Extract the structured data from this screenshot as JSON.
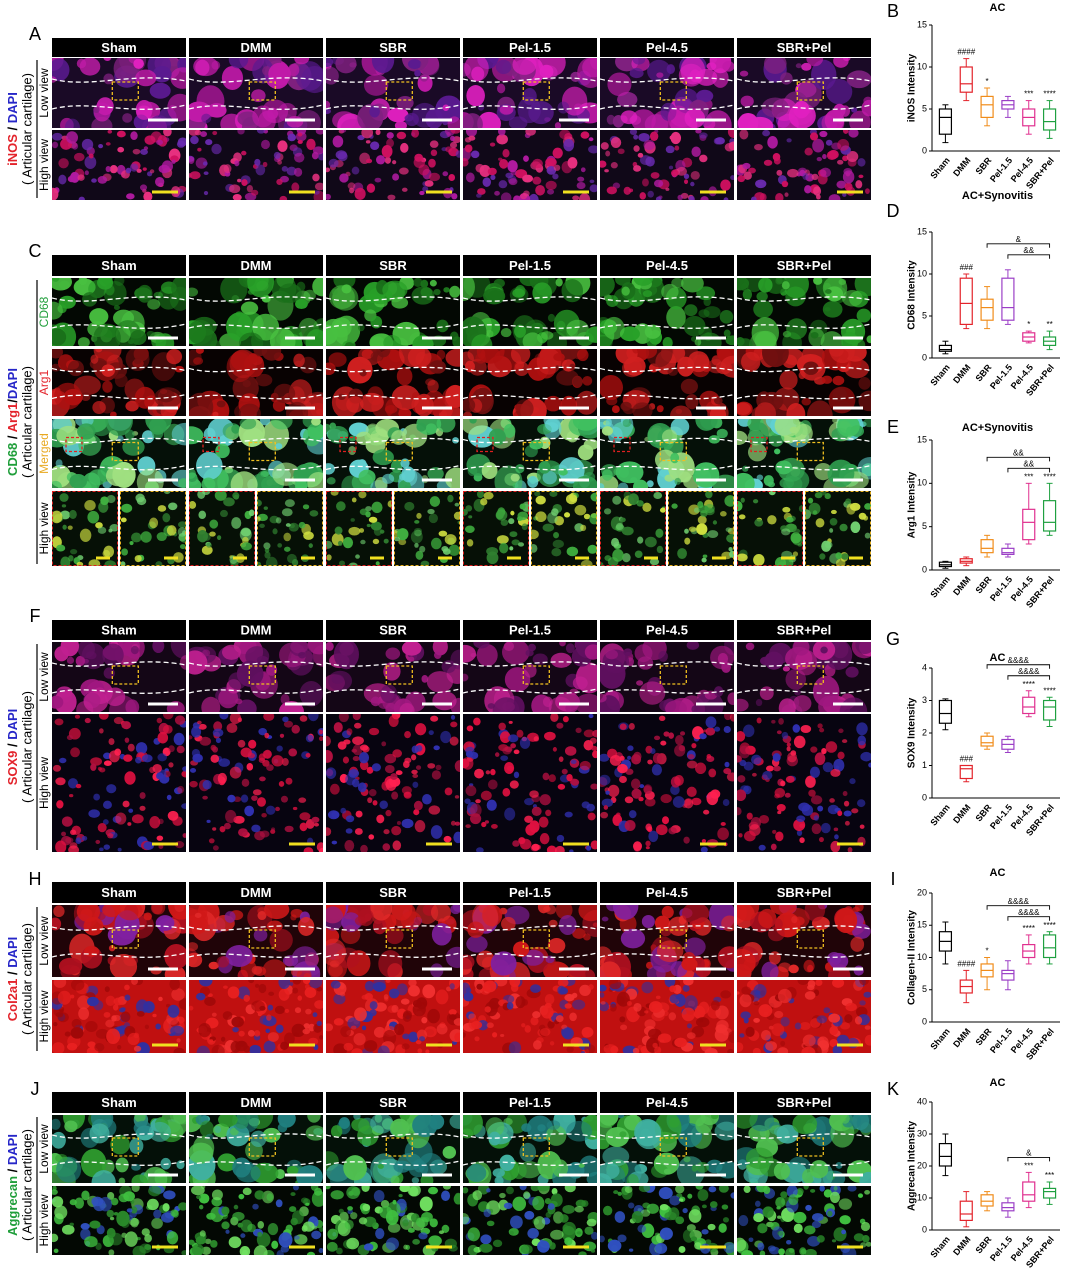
{
  "groups": [
    "Sham",
    "DMM",
    "SBR",
    "Pel-1.5",
    "Pel-4.5",
    "SBR+Pel"
  ],
  "panels": [
    {
      "letter": "A",
      "stain": [
        {
          "text": "iNOS",
          "color": "#e3232b"
        },
        {
          "text": " / ",
          "color": "#000000"
        },
        {
          "text": "DAPI",
          "color": "#2626c8"
        }
      ],
      "region": "( Articular cartilage)",
      "rows": [
        {
          "label": "Low view",
          "color": "#000000"
        },
        {
          "label": "High view",
          "color": "#000000"
        }
      ]
    },
    {
      "letter": "C",
      "stain": [
        {
          "text": "CD68",
          "color": "#1f9e3a"
        },
        {
          "text": " / ",
          "color": "#000000"
        },
        {
          "text": "Arg1",
          "color": "#e3232b"
        },
        {
          "text": "/",
          "color": "#000000"
        },
        {
          "text": "DAPI",
          "color": "#2626c8"
        }
      ],
      "region": "( Articular cartilage)",
      "rows": [
        {
          "label": "CD68",
          "color": "#1f9e3a"
        },
        {
          "label": "Arg1",
          "color": "#e3232b"
        },
        {
          "label": "Merged",
          "color": "#e8a820"
        },
        {
          "label": "High view",
          "color": "#000000"
        }
      ]
    },
    {
      "letter": "F",
      "stain": [
        {
          "text": "SOX9",
          "color": "#e3232b"
        },
        {
          "text": " / ",
          "color": "#000000"
        },
        {
          "text": "DAPI",
          "color": "#2626c8"
        }
      ],
      "region": "( Articular cartilage)",
      "rows": [
        {
          "label": "Low view",
          "color": "#000000"
        },
        {
          "label": "High view",
          "color": "#000000"
        }
      ]
    },
    {
      "letter": "H",
      "stain": [
        {
          "text": "Col2a1",
          "color": "#e3232b"
        },
        {
          "text": " / ",
          "color": "#000000"
        },
        {
          "text": "DAPI",
          "color": "#2626c8"
        }
      ],
      "region": "( Articular cartilage)",
      "rows": [
        {
          "label": "Low view",
          "color": "#000000"
        },
        {
          "label": "High view",
          "color": "#000000"
        }
      ]
    },
    {
      "letter": "J",
      "stain": [
        {
          "text": "Aggrecan",
          "color": "#1f9e3a"
        },
        {
          "text": " / ",
          "color": "#000000"
        },
        {
          "text": "DAPI",
          "color": "#2626c8"
        }
      ],
      "region": "( Articular cartilage)",
      "rows": [
        {
          "label": "Low view",
          "color": "#000000"
        },
        {
          "label": "High view",
          "color": "#000000"
        }
      ]
    }
  ],
  "charts": [
    {
      "type": "box",
      "letter": "B",
      "title": "AC",
      "ylabel": "iNOS Intensity",
      "categories": [
        "Sham",
        "DMM",
        "SBR",
        "Pel-1.5",
        "Pel-4.5",
        "SBR+Pel"
      ],
      "colors": [
        "#000000",
        "#e3232b",
        "#f08c1a",
        "#9b3fc6",
        "#e0308f",
        "#1fa040"
      ],
      "ylim": [
        0,
        15
      ],
      "yticks": [
        0,
        5,
        10,
        15
      ],
      "boxes": [
        [
          1,
          2,
          4,
          5,
          5.5
        ],
        [
          6,
          7,
          8,
          10,
          11
        ],
        [
          3,
          4,
          5.5,
          6.5,
          7.5
        ],
        [
          4,
          5,
          5.5,
          6,
          6.5
        ],
        [
          2,
          3,
          4,
          5,
          6
        ],
        [
          1.5,
          2.5,
          3.5,
          5,
          6
        ]
      ],
      "significance": [
        null,
        "####",
        "*",
        null,
        "***",
        "****"
      ],
      "brackets": []
    },
    {
      "type": "box",
      "letter": "D",
      "title": "AC+Synovitis",
      "ylabel": "CD68 Intensity",
      "categories": [
        "Sham",
        "DMM",
        "SBR",
        "Pel-1.5",
        "Pel-4.5",
        "SBR+Pel"
      ],
      "colors": [
        "#000000",
        "#e3232b",
        "#f08c1a",
        "#9b3fc6",
        "#e0308f",
        "#1fa040"
      ],
      "ylim": [
        0,
        15
      ],
      "yticks": [
        0,
        5,
        10,
        15
      ],
      "boxes": [
        [
          0.5,
          0.8,
          1,
          1.5,
          2
        ],
        [
          3.5,
          4,
          6.5,
          9.5,
          10
        ],
        [
          3.5,
          4.5,
          6,
          7,
          8.5
        ],
        [
          4,
          4.5,
          6,
          9.5,
          10.5
        ],
        [
          1.8,
          2,
          2.5,
          3,
          3.2
        ],
        [
          1,
          1.5,
          2,
          2.5,
          3.2
        ]
      ],
      "significance": [
        null,
        "###",
        null,
        null,
        "*",
        "**"
      ],
      "brackets": [
        {
          "from": 3,
          "to": 5,
          "label": "&&"
        },
        {
          "from": 2,
          "to": 5,
          "label": "&"
        }
      ]
    },
    {
      "type": "box",
      "letter": "E",
      "title": "AC+Synovitis",
      "ylabel": "Arg1 Intensity",
      "categories": [
        "Sham",
        "DMM",
        "SBR",
        "Pel-1.5",
        "Pel-4.5",
        "SBR+Pel"
      ],
      "colors": [
        "#000000",
        "#e3232b",
        "#f08c1a",
        "#9b3fc6",
        "#e0308f",
        "#1fa040"
      ],
      "ylim": [
        0,
        15
      ],
      "yticks": [
        0,
        5,
        10,
        15
      ],
      "boxes": [
        [
          0.2,
          0.4,
          0.6,
          0.9,
          1
        ],
        [
          0.5,
          0.8,
          1,
          1.3,
          1.5
        ],
        [
          1.5,
          2,
          2.5,
          3.5,
          4
        ],
        [
          1.5,
          1.8,
          2,
          2.5,
          3
        ],
        [
          3,
          3.5,
          5.5,
          7,
          10
        ],
        [
          4,
          4.5,
          5.5,
          8,
          10
        ]
      ],
      "significance": [
        null,
        null,
        null,
        null,
        "***",
        "****"
      ],
      "brackets": [
        {
          "from": 3,
          "to": 5,
          "label": "&&"
        },
        {
          "from": 2,
          "to": 5,
          "label": "&&"
        }
      ]
    },
    {
      "type": "box",
      "letter": "G",
      "title": "AC",
      "ylabel": "SOX9 Intensity",
      "categories": [
        "Sham",
        "DMM",
        "SBR",
        "Pel-1.5",
        "Pel-4.5",
        "SBR+Pel"
      ],
      "colors": [
        "#000000",
        "#e3232b",
        "#f08c1a",
        "#9b3fc6",
        "#e0308f",
        "#1fa040"
      ],
      "ylim": [
        0,
        4
      ],
      "yticks": [
        0,
        1,
        2,
        3,
        4
      ],
      "boxes": [
        [
          2.1,
          2.3,
          2.6,
          3,
          3.05
        ],
        [
          0.5,
          0.6,
          0.9,
          1,
          1
        ],
        [
          1.5,
          1.6,
          1.7,
          1.9,
          2
        ],
        [
          1.4,
          1.5,
          1.65,
          1.8,
          1.9
        ],
        [
          2.5,
          2.6,
          2.8,
          3.1,
          3.3
        ],
        [
          2.2,
          2.4,
          2.8,
          3,
          3.1
        ]
      ],
      "significance": [
        null,
        "###",
        null,
        null,
        "****",
        "****"
      ],
      "brackets": [
        {
          "from": 3,
          "to": 5,
          "label": "&&&&"
        },
        {
          "from": 2,
          "to": 5,
          "label": "&&&&"
        }
      ]
    },
    {
      "type": "box",
      "letter": "I",
      "title": "AC",
      "ylabel": "Collagen-II Intensity",
      "categories": [
        "Sham",
        "DMM",
        "SBR",
        "Pel-1.5",
        "Pel-4.5",
        "SBR+Pel"
      ],
      "colors": [
        "#000000",
        "#e3232b",
        "#f08c1a",
        "#9b3fc6",
        "#e0308f",
        "#1fa040"
      ],
      "ylim": [
        0,
        20
      ],
      "yticks": [
        0,
        5,
        10,
        15,
        20
      ],
      "boxes": [
        [
          9,
          11,
          12.5,
          14,
          15.5
        ],
        [
          3,
          4.5,
          5.5,
          6.5,
          8
        ],
        [
          5,
          7,
          8,
          9,
          10
        ],
        [
          5,
          6.5,
          7.5,
          8,
          9.5
        ],
        [
          9,
          10,
          11,
          12,
          13.5
        ],
        [
          9,
          10,
          11.5,
          13.5,
          14
        ]
      ],
      "significance": [
        null,
        "####",
        "*",
        null,
        "****",
        "****"
      ],
      "brackets": [
        {
          "from": 3,
          "to": 5,
          "label": "&&&&"
        },
        {
          "from": 2,
          "to": 5,
          "label": "&&&&"
        }
      ]
    },
    {
      "type": "box",
      "letter": "K",
      "title": "AC",
      "ylabel": "Aggrecan Intensity",
      "categories": [
        "Sham",
        "DMM",
        "SBR",
        "Pel-1.5",
        "Pel-4.5",
        "SBR+Pel"
      ],
      "colors": [
        "#000000",
        "#e3232b",
        "#f08c1a",
        "#9b3fc6",
        "#e0308f",
        "#1fa040"
      ],
      "ylim": [
        0,
        40
      ],
      "yticks": [
        0,
        10,
        20,
        30,
        40
      ],
      "boxes": [
        [
          17,
          20,
          23,
          27,
          30
        ],
        [
          1,
          3,
          5,
          9,
          12
        ],
        [
          6,
          7.5,
          9,
          11,
          12
        ],
        [
          4,
          6,
          7,
          8.5,
          10
        ],
        [
          7,
          9,
          11,
          15,
          18
        ],
        [
          8,
          10,
          12,
          13,
          15
        ]
      ],
      "significance": [
        null,
        null,
        null,
        null,
        "***",
        "***"
      ],
      "brackets": [
        {
          "from": 3,
          "to": 5,
          "label": "&"
        }
      ]
    }
  ]
}
